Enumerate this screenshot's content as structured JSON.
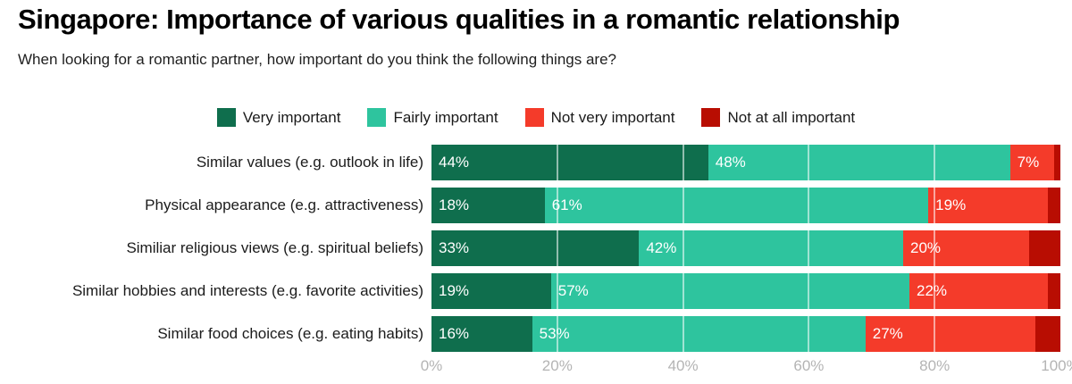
{
  "title": "Singapore: Importance of various qualities in a romantic relationship",
  "subtitle": "When looking for a romantic partner, how important do you think the following things are?",
  "legend": [
    {
      "label": "Very important",
      "color": "#0f6e4d"
    },
    {
      "label": "Fairly important",
      "color": "#2ec49e"
    },
    {
      "label": "Not very important",
      "color": "#f43b2a"
    },
    {
      "label": "Not at all important",
      "color": "#b80d02"
    }
  ],
  "colors": {
    "very_important": "#0f6e4d",
    "fairly_important": "#2ec49e",
    "not_very_important": "#f43b2a",
    "not_at_all_important": "#b80d02",
    "axis_text": "#b4b4b4",
    "gridline": "rgba(255,255,255,0.55)"
  },
  "chart_data": {
    "type": "bar",
    "stacked": true,
    "orientation": "horizontal",
    "categories": [
      "Similar values (e.g. outlook in life)",
      "Physical appearance (e.g. attractiveness)",
      "Similiar religious views (e.g. spiritual beliefs)",
      "Similar hobbies and interests (e.g. favorite activities)",
      "Similar food choices (e.g. eating habits)"
    ],
    "series": [
      {
        "name": "Very important",
        "color": "#0f6e4d",
        "values": [
          44,
          18,
          33,
          19,
          16
        ]
      },
      {
        "name": "Fairly important",
        "color": "#2ec49e",
        "values": [
          48,
          61,
          42,
          57,
          53
        ]
      },
      {
        "name": "Not very important",
        "color": "#f43b2a",
        "values": [
          7,
          19,
          20,
          22,
          27
        ]
      },
      {
        "name": "Not at all important",
        "color": "#b80d02",
        "values": [
          1,
          2,
          5,
          2,
          4
        ]
      }
    ],
    "value_labels_shown": [
      true,
      true,
      true,
      false
    ],
    "value_label_suffix": "%",
    "xlim": [
      0,
      100
    ],
    "x_ticks": [
      "0%",
      "20%",
      "40%",
      "60%",
      "80%",
      "100%"
    ],
    "gridlines_pct": [
      20,
      40,
      60,
      80
    ],
    "legend_position": "top-center",
    "grid": true
  }
}
